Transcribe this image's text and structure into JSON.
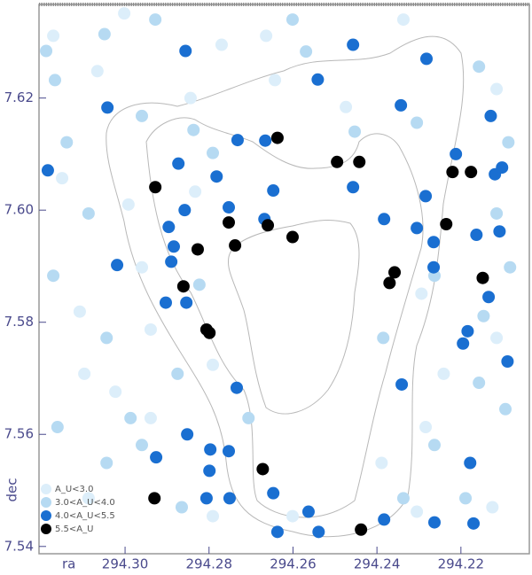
{
  "chart_data": {
    "type": "scatter",
    "x_label": "ra",
    "y_label": "dec",
    "xlim": [
      294.3205,
      294.2037
    ],
    "ylim": [
      7.5387,
      7.6367
    ],
    "xticks": [
      {
        "value": 294.3,
        "label": "294.30"
      },
      {
        "value": 294.28,
        "label": "294.28"
      },
      294.26,
      294.24,
      294.22
    ],
    "yticks": [
      7.54,
      7.56,
      7.58,
      {
        "value": 7.6,
        "label": "7.60"
      },
      7.62
    ],
    "legend": "lower left",
    "series": [
      {
        "name": "A_U<3.0",
        "color": "#dceefa",
        "x": [
          294.3171,
          294.3002,
          294.277,
          294.2664,
          294.2337,
          294.3066,
          294.2844,
          294.2643,
          294.2474,
          294.2115,
          294.315,
          294.2992,
          294.2833,
          294.296,
          294.3108,
          294.2939,
          294.3097,
          294.3023,
          294.2791,
          294.2939,
          294.2791,
          294.2601,
          294.2305,
          294.2125,
          294.2284,
          294.2241,
          294.2115,
          294.2294,
          294.2389,
          294.3087
        ],
        "values": [
          7.6311,
          7.6351,
          7.6295,
          7.6311,
          7.634,
          7.6248,
          7.62,
          7.6232,
          7.6184,
          7.6216,
          7.6057,
          7.601,
          7.6033,
          7.5898,
          7.5819,
          7.5787,
          7.5708,
          7.5676,
          7.5724,
          7.5629,
          7.5454,
          7.5454,
          7.5462,
          7.547,
          7.5613,
          7.5708,
          7.5772,
          7.5851,
          7.5549,
          7.5486
        ]
      },
      {
        "name": "3.0<A_U<4.0",
        "color": "#b6daf2",
        "x": [
          294.3188,
          294.3049,
          294.2928,
          294.3167,
          294.3139,
          294.296,
          294.2837,
          294.2791,
          294.2601,
          294.2569,
          294.2453,
          294.2305,
          294.2157,
          294.2087,
          294.2115,
          294.2083,
          294.2146,
          294.2263,
          294.2385,
          294.2157,
          294.2094,
          294.2263,
          294.2189,
          294.2337,
          294.2706,
          294.2875,
          294.296,
          294.3044,
          294.3161,
          294.2865,
          294.2823,
          294.3044,
          294.3087,
          294.3171,
          294.2987
        ],
        "values": [
          7.6284,
          7.6314,
          7.634,
          7.6232,
          7.6121,
          7.6168,
          7.6143,
          7.6102,
          7.634,
          7.6283,
          7.614,
          7.6156,
          7.6256,
          7.6121,
          7.5994,
          7.5898,
          7.5811,
          7.5883,
          7.5772,
          7.5692,
          7.5645,
          7.5581,
          7.5486,
          7.5486,
          7.5629,
          7.5708,
          7.5581,
          7.5549,
          7.5613,
          7.547,
          7.5867,
          7.5772,
          7.5994,
          7.5883,
          7.5629
        ]
      },
      {
        "name": "4.0<A_U<5.5",
        "color": "#1a6fd1",
        "x": [
          294.3184,
          294.2856,
          294.3042,
          294.2541,
          294.2457,
          294.2282,
          294.2343,
          294.2129,
          294.2732,
          294.2666,
          294.2212,
          294.2873,
          294.2782,
          294.2647,
          294.2457,
          294.2284,
          294.2119,
          294.2102,
          294.2858,
          294.2753,
          294.2668,
          294.2383,
          294.2305,
          294.2265,
          294.2163,
          294.2108,
          294.289,
          294.3019,
          294.2896,
          294.2884,
          294.2903,
          294.2854,
          294.2265,
          294.2134,
          294.2184,
          294.2195,
          294.2089,
          294.2734,
          294.2341,
          294.2852,
          294.2926,
          294.2797,
          294.2753,
          294.2799,
          294.2806,
          294.2751,
          294.2647,
          294.2563,
          294.2637,
          294.2539,
          294.2383,
          294.2263,
          294.217,
          294.2178
        ],
        "values": [
          7.6071,
          7.6284,
          7.6183,
          7.6233,
          7.6295,
          7.627,
          7.6187,
          7.6168,
          7.6125,
          7.6124,
          7.61,
          7.6083,
          7.606,
          7.6035,
          7.6041,
          7.6025,
          7.6064,
          7.6076,
          7.6,
          7.6005,
          7.5984,
          7.5984,
          7.5968,
          7.5943,
          7.5956,
          7.5962,
          7.5908,
          7.5902,
          7.597,
          7.5935,
          7.5835,
          7.5835,
          7.5898,
          7.5845,
          7.5784,
          7.5762,
          7.573,
          7.5683,
          7.5689,
          7.56,
          7.5559,
          7.5573,
          7.557,
          7.5535,
          7.5486,
          7.5486,
          7.5495,
          7.5462,
          7.5426,
          7.5426,
          7.5448,
          7.5443,
          7.5441,
          7.5549
        ]
      },
      {
        "name": "5.5<A_U",
        "color": "#000000",
        "x": [
          294.2928,
          294.2637,
          294.2495,
          294.2442,
          294.2753,
          294.266,
          294.2601,
          294.2738,
          294.2827,
          294.2861,
          294.2806,
          294.2799,
          294.2358,
          294.237,
          294.222,
          294.2176,
          294.2235,
          294.2148,
          294.2672,
          294.293,
          294.2438
        ],
        "values": [
          7.6041,
          7.6129,
          7.6086,
          7.6086,
          7.5978,
          7.5973,
          7.5952,
          7.5937,
          7.593,
          7.5864,
          7.5787,
          7.5781,
          7.5889,
          7.587,
          7.6068,
          7.6068,
          7.5975,
          7.5879,
          7.5538,
          7.5486,
          7.543
        ]
      }
    ]
  }
}
